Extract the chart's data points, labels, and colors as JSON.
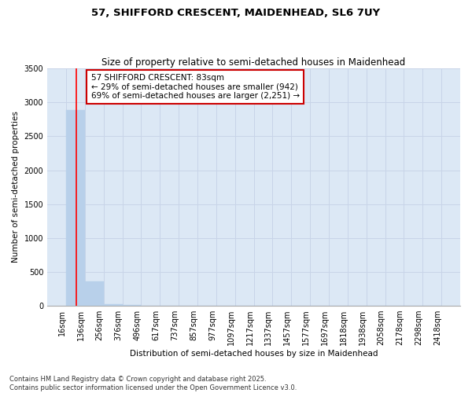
{
  "title": "57, SHIFFORD CRESCENT, MAIDENHEAD, SL6 7UY",
  "subtitle": "Size of property relative to semi-detached houses in Maidenhead",
  "xlabel": "Distribution of semi-detached houses by size in Maidenhead",
  "ylabel": "Number of semi-detached properties",
  "bar_edges": [
    16,
    136,
    256,
    376,
    496,
    617,
    737,
    857,
    977,
    1097,
    1217,
    1337,
    1457,
    1577,
    1697,
    1818,
    1938,
    2058,
    2178,
    2298,
    2418
  ],
  "bar_heights": [
    2890,
    355,
    20,
    8,
    4,
    2,
    1,
    1,
    1,
    0,
    0,
    0,
    0,
    0,
    0,
    0,
    0,
    0,
    0,
    0
  ],
  "bar_color": "#b8d0ea",
  "bar_edge_color": "#b8d0ea",
  "property_size": 83,
  "annotation_title": "57 SHIFFORD CRESCENT: 83sqm",
  "annotation_line1": "← 29% of semi-detached houses are smaller (942)",
  "annotation_line2": "69% of semi-detached houses are larger (2,251) →",
  "vline_color": "#ff0000",
  "annotation_box_color": "#ffffff",
  "annotation_box_edge": "#cc0000",
  "ylim": [
    0,
    3500
  ],
  "yticks": [
    0,
    500,
    1000,
    1500,
    2000,
    2500,
    3000,
    3500
  ],
  "grid_color": "#c8d4e8",
  "bg_color": "#dce8f5",
  "footer": "Contains HM Land Registry data © Crown copyright and database right 2025.\nContains public sector information licensed under the Open Government Licence v3.0.",
  "title_fontsize": 9.5,
  "subtitle_fontsize": 8.5,
  "axis_label_fontsize": 7.5,
  "tick_fontsize": 7,
  "annotation_fontsize": 7.5,
  "footer_fontsize": 6
}
